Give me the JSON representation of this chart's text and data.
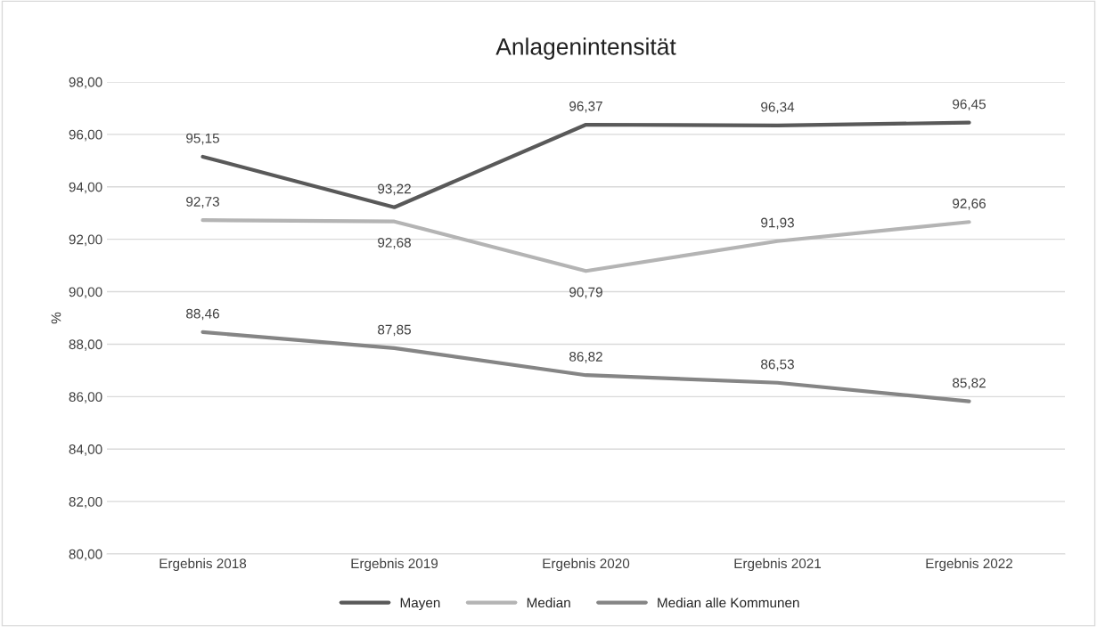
{
  "chart_data": {
    "type": "line",
    "title": "Anlagenintensität",
    "ylabel": "%",
    "categories": [
      "Ergebnis 2018",
      "Ergebnis 2019",
      "Ergebnis 2020",
      "Ergebnis 2021",
      "Ergebnis 2022"
    ],
    "series": [
      {
        "name": "Mayen",
        "color": "#595959",
        "values": [
          95.15,
          93.22,
          96.37,
          96.34,
          96.45
        ],
        "value_labels": [
          "95,15",
          "93,22",
          "96,37",
          "96,34",
          "96,45"
        ]
      },
      {
        "name": "Median",
        "color": "#b4b4b4",
        "values": [
          92.73,
          92.68,
          90.79,
          91.93,
          92.66
        ],
        "value_labels": [
          "92,73",
          "92,68",
          "90,79",
          "91,93",
          "92,66"
        ]
      },
      {
        "name": "Median alle Kommunen",
        "color": "#858585",
        "values": [
          88.46,
          87.85,
          86.82,
          86.53,
          85.82
        ],
        "value_labels": [
          "88,46",
          "87,85",
          "86,82",
          "86,53",
          "85,82"
        ]
      }
    ],
    "ylim": [
      80,
      98
    ],
    "yticks": [
      {
        "value": 80,
        "label": "80,00"
      },
      {
        "value": 82,
        "label": "82,00"
      },
      {
        "value": 84,
        "label": "84,00"
      },
      {
        "value": 86,
        "label": "86,00"
      },
      {
        "value": 88,
        "label": "88,00"
      },
      {
        "value": 90,
        "label": "90,00"
      },
      {
        "value": 92,
        "label": "92,00"
      },
      {
        "value": 94,
        "label": "94,00"
      },
      {
        "value": 96,
        "label": "96,00"
      },
      {
        "value": 98,
        "label": "98,00"
      }
    ],
    "grid": "y",
    "legend": "bottom",
    "marker": "none",
    "line_style": "solid"
  }
}
